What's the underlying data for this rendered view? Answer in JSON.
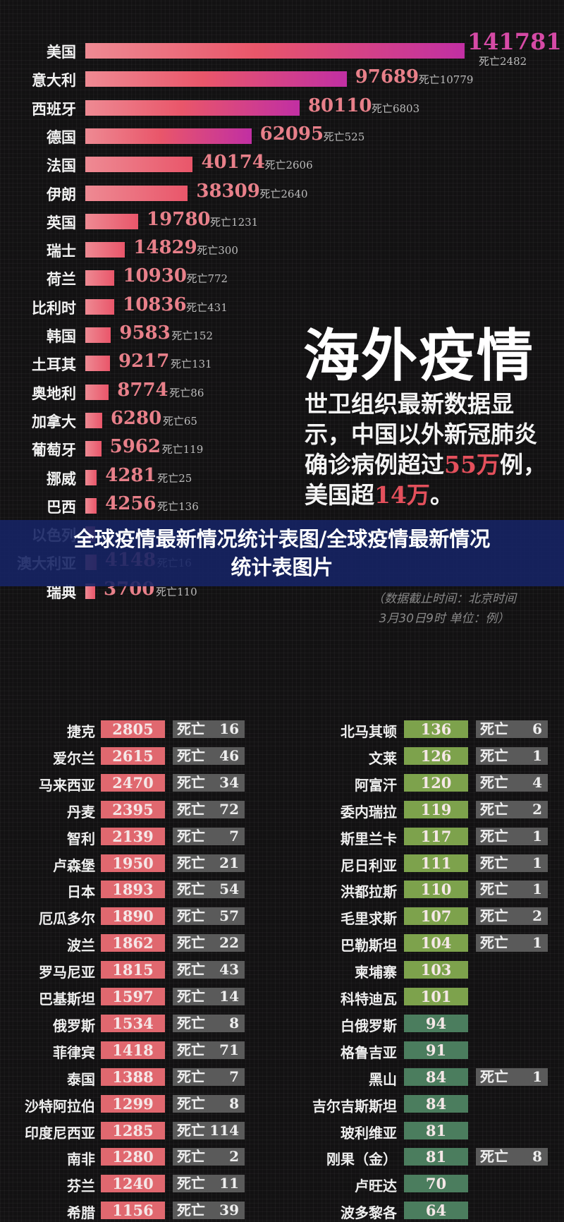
{
  "chart_data": {
    "type": "bar",
    "orientation": "horizontal",
    "deaths_prefix": "死亡",
    "categories": [
      "美国",
      "意大利",
      "西班牙",
      "德国",
      "法国",
      "伊朗",
      "英国",
      "瑞士",
      "荷兰",
      "比利时",
      "韩国",
      "土耳其",
      "奥地利",
      "加拿大",
      "葡萄牙",
      "挪威",
      "巴西",
      "以色列",
      "澳大利亚",
      "瑞典"
    ],
    "values": [
      141781,
      97689,
      80110,
      62095,
      40174,
      38309,
      19780,
      14829,
      10930,
      10836,
      9583,
      9217,
      8774,
      6280,
      5962,
      4281,
      4256,
      null,
      4148,
      3700
    ],
    "deaths": [
      2482,
      10779,
      6803,
      525,
      2606,
      2640,
      1231,
      300,
      772,
      431,
      152,
      131,
      86,
      65,
      119,
      25,
      136,
      null,
      16,
      110
    ],
    "colors": {
      "bar_start": "#ee8a93",
      "bar_mid": "#e9566a",
      "bar_end": "#c12fa3"
    }
  },
  "headline": "海外疫情",
  "paragraph": {
    "text1": "世卫组织最新数据显示，中国以外新冠肺炎确诊病例超过",
    "hl1": "55万",
    "text2": "例，美国超",
    "hl2": "14万",
    "text3": "。"
  },
  "note": {
    "line1": "（数据截止时间：北京时间",
    "line2": "3月30日9时 单位：例）"
  },
  "banner": {
    "line1": "全球疫情最新情况统计表图/全球疫情最新情况",
    "line2": "统计表图片"
  },
  "tables": {
    "death_label": "死亡",
    "left": [
      {
        "country": "捷克",
        "cases": 2805,
        "deaths": 16
      },
      {
        "country": "爱尔兰",
        "cases": 2615,
        "deaths": 46
      },
      {
        "country": "马来西亚",
        "cases": 2470,
        "deaths": 34
      },
      {
        "country": "丹麦",
        "cases": 2395,
        "deaths": 72
      },
      {
        "country": "智利",
        "cases": 2139,
        "deaths": 7
      },
      {
        "country": "卢森堡",
        "cases": 1950,
        "deaths": 21
      },
      {
        "country": "日本",
        "cases": 1893,
        "deaths": 54
      },
      {
        "country": "厄瓜多尔",
        "cases": 1890,
        "deaths": 57
      },
      {
        "country": "波兰",
        "cases": 1862,
        "deaths": 22
      },
      {
        "country": "罗马尼亚",
        "cases": 1815,
        "deaths": 43
      },
      {
        "country": "巴基斯坦",
        "cases": 1597,
        "deaths": 14
      },
      {
        "country": "俄罗斯",
        "cases": 1534,
        "deaths": 8
      },
      {
        "country": "菲律宾",
        "cases": 1418,
        "deaths": 71
      },
      {
        "country": "泰国",
        "cases": 1388,
        "deaths": 7
      },
      {
        "country": "沙特阿拉伯",
        "cases": 1299,
        "deaths": 8
      },
      {
        "country": "印度尼西亚",
        "cases": 1285,
        "deaths": 114
      },
      {
        "country": "南非",
        "cases": 1280,
        "deaths": 2
      },
      {
        "country": "芬兰",
        "cases": 1240,
        "deaths": 11
      },
      {
        "country": "希腊",
        "cases": 1156,
        "deaths": 39
      }
    ],
    "right": [
      {
        "country": "北马其顿",
        "cases": 136,
        "deaths": 6
      },
      {
        "country": "文莱",
        "cases": 126,
        "deaths": 1
      },
      {
        "country": "阿富汗",
        "cases": 120,
        "deaths": 4
      },
      {
        "country": "委内瑞拉",
        "cases": 119,
        "deaths": 2
      },
      {
        "country": "斯里兰卡",
        "cases": 117,
        "deaths": 1
      },
      {
        "country": "尼日利亚",
        "cases": 111,
        "deaths": 1
      },
      {
        "country": "洪都拉斯",
        "cases": 110,
        "deaths": 1
      },
      {
        "country": "毛里求斯",
        "cases": 107,
        "deaths": 2
      },
      {
        "country": "巴勒斯坦",
        "cases": 104,
        "deaths": 1
      },
      {
        "country": "柬埔寨",
        "cases": 103,
        "deaths": null
      },
      {
        "country": "科特迪瓦",
        "cases": 101,
        "deaths": null
      },
      {
        "country": "白俄罗斯",
        "cases": 94,
        "deaths": null
      },
      {
        "country": "格鲁吉亚",
        "cases": 91,
        "deaths": null
      },
      {
        "country": "黑山",
        "cases": 84,
        "deaths": 1
      },
      {
        "country": "吉尔吉斯斯坦",
        "cases": 84,
        "deaths": null
      },
      {
        "country": "玻利维亚",
        "cases": 81,
        "deaths": null
      },
      {
        "country": "刚果（金）",
        "cases": 81,
        "deaths": 8
      },
      {
        "country": "卢旺达",
        "cases": 70,
        "deaths": null
      },
      {
        "country": "波多黎各",
        "cases": 64,
        "deaths": null
      }
    ],
    "colors": {
      "red": "#e0686f",
      "green_light": "#7da24c",
      "green_dark": "#4b7d5e",
      "gray": "#5a5a5a"
    }
  }
}
